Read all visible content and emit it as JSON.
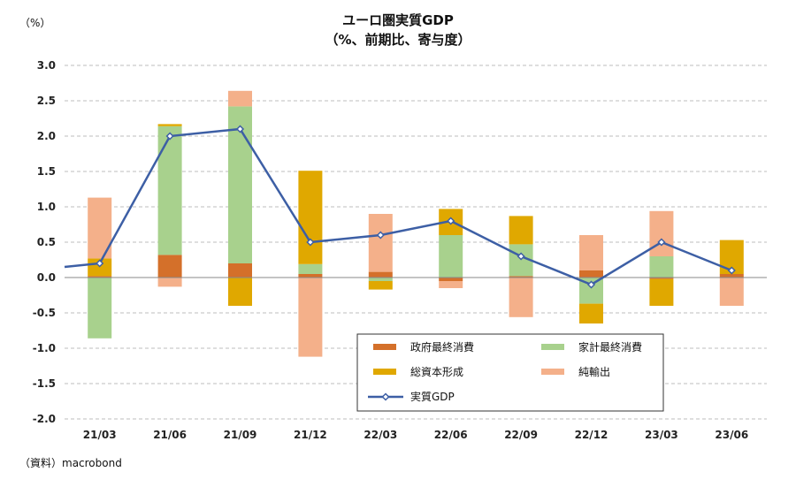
{
  "chart_data": {
    "type": "bar",
    "stacked": true,
    "title": "ユーロ圏実質GDP",
    "subtitle": "（%、前期比、寄与度）",
    "ylabel": "（%）",
    "source": "（資料）macrobond",
    "ylim": [
      -2.0,
      3.0
    ],
    "ytick_step": 0.5,
    "y_tick_labels": [
      "3.0",
      "2.5",
      "2.0",
      "1.5",
      "1.0",
      "0.5",
      "0.0",
      "-0.5",
      "-1.0",
      "-1.5",
      "-2.0"
    ],
    "grid": true,
    "legend_position": "bottom-center",
    "categories": [
      "21/03",
      "21/06",
      "21/09",
      "21/12",
      "22/03",
      "22/06",
      "22/09",
      "22/12",
      "23/03",
      "23/06"
    ],
    "series": [
      {
        "name": "政府最終消費",
        "kind": "bar",
        "color": "#D4702A",
        "values": [
          0.02,
          0.32,
          0.2,
          0.05,
          0.08,
          -0.05,
          0.02,
          0.1,
          -0.02,
          0.05
        ]
      },
      {
        "name": "家計最終消費",
        "kind": "bar",
        "color": "#A8D18D",
        "values": [
          -0.86,
          1.82,
          2.22,
          0.14,
          -0.05,
          0.6,
          0.45,
          -0.37,
          0.3,
          0.0
        ]
      },
      {
        "name": "総資本形成",
        "kind": "bar",
        "color": "#E0A800",
        "values": [
          0.25,
          0.03,
          -0.4,
          1.32,
          -0.12,
          0.37,
          0.4,
          -0.28,
          -0.38,
          0.48
        ]
      },
      {
        "name": "純輸出",
        "kind": "bar",
        "color": "#F4B08A",
        "values": [
          0.86,
          -0.13,
          0.22,
          -1.12,
          0.82,
          -0.1,
          -0.56,
          0.5,
          0.64,
          -0.4
        ]
      },
      {
        "name": "実質GDP",
        "kind": "line",
        "color": "#3D5FA5",
        "values": [
          0.2,
          2.0,
          2.1,
          0.5,
          0.6,
          0.8,
          0.3,
          -0.1,
          0.5,
          0.1
        ]
      }
    ]
  }
}
